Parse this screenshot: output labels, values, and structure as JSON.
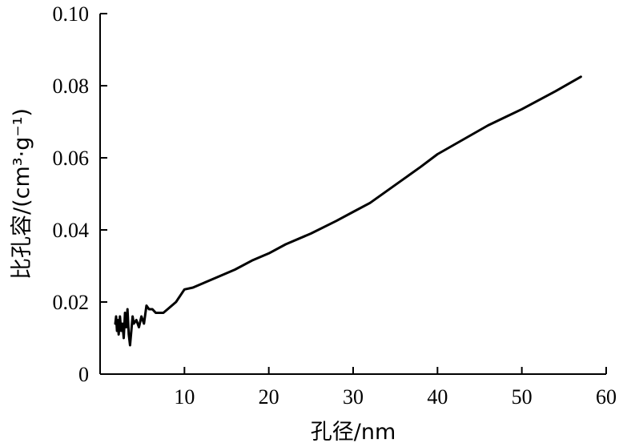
{
  "chart_data": {
    "type": "line",
    "xlabel": "孔径/nm",
    "ylabel": "比孔容/(cm³·g⁻¹)",
    "xlim": [
      0,
      60
    ],
    "ylim": [
      0,
      0.1
    ],
    "x_ticks": [
      "10",
      "20",
      "30",
      "40",
      "50",
      "60"
    ],
    "y_ticks": [
      "0",
      "0.02",
      "0.04",
      "0.06",
      "0.08",
      "0.10"
    ],
    "grid": false,
    "series": [
      {
        "x": [
          1.8,
          1.9,
          2.0,
          2.1,
          2.2,
          2.35,
          2.5,
          2.65,
          2.8,
          2.95,
          3.1,
          3.25,
          3.4,
          3.55,
          3.7,
          3.85,
          4.0,
          4.3,
          4.6,
          4.9,
          5.2,
          5.5,
          5.8,
          6.2,
          6.6,
          7.0,
          7.5,
          8.0,
          9.0,
          10.0,
          11.0,
          12.0,
          14.0,
          16.0,
          18.0,
          20.0,
          22.0,
          25.0,
          28.0,
          30.0,
          32.0,
          35.0,
          38.0,
          40.0,
          43.0,
          46.0,
          50.0,
          54.0,
          57.0
        ],
        "y": [
          0.014,
          0.016,
          0.012,
          0.015,
          0.011,
          0.016,
          0.012,
          0.014,
          0.01,
          0.017,
          0.013,
          0.018,
          0.011,
          0.008,
          0.012,
          0.016,
          0.014,
          0.015,
          0.013,
          0.016,
          0.014,
          0.019,
          0.018,
          0.018,
          0.017,
          0.017,
          0.017,
          0.018,
          0.02,
          0.0235,
          0.024,
          0.025,
          0.027,
          0.029,
          0.0315,
          0.0335,
          0.036,
          0.039,
          0.0425,
          0.045,
          0.0475,
          0.0525,
          0.0575,
          0.061,
          0.065,
          0.069,
          0.0735,
          0.0785,
          0.0825
        ]
      }
    ]
  }
}
